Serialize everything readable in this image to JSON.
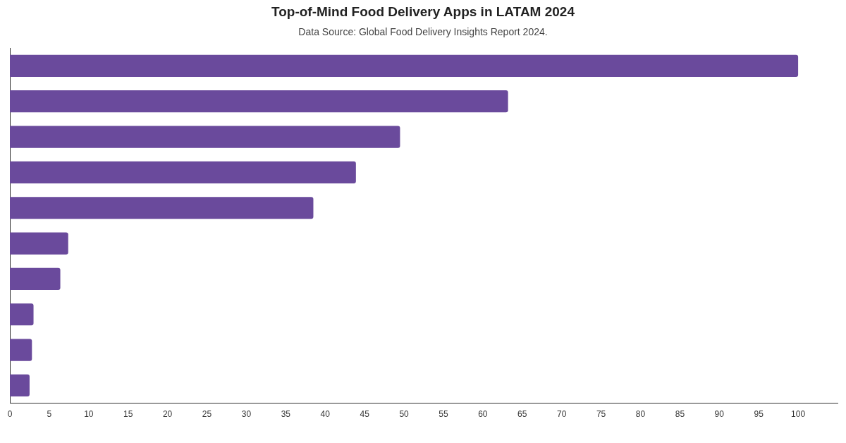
{
  "chart_data": {
    "type": "bar",
    "orientation": "horizontal",
    "title": "Top-of-Mind Food Delivery Apps in LATAM 2024",
    "subtitle": "Data Source: Global Food Delivery Insights Report 2024.",
    "categories": [
      null,
      null,
      null,
      null,
      null,
      null,
      null,
      null,
      null,
      null
    ],
    "values": [
      100,
      63.2,
      49.5,
      43.9,
      38.5,
      7.4,
      6.4,
      3.0,
      2.8,
      2.5
    ],
    "color": "#6a4a9c",
    "xlim": [
      0,
      105
    ],
    "xticks": [
      0,
      5,
      10,
      15,
      20,
      25,
      30,
      35,
      40,
      45,
      50,
      55,
      60,
      65,
      70,
      75,
      80,
      85,
      90,
      95,
      100
    ],
    "grid": false,
    "legend": false
  }
}
